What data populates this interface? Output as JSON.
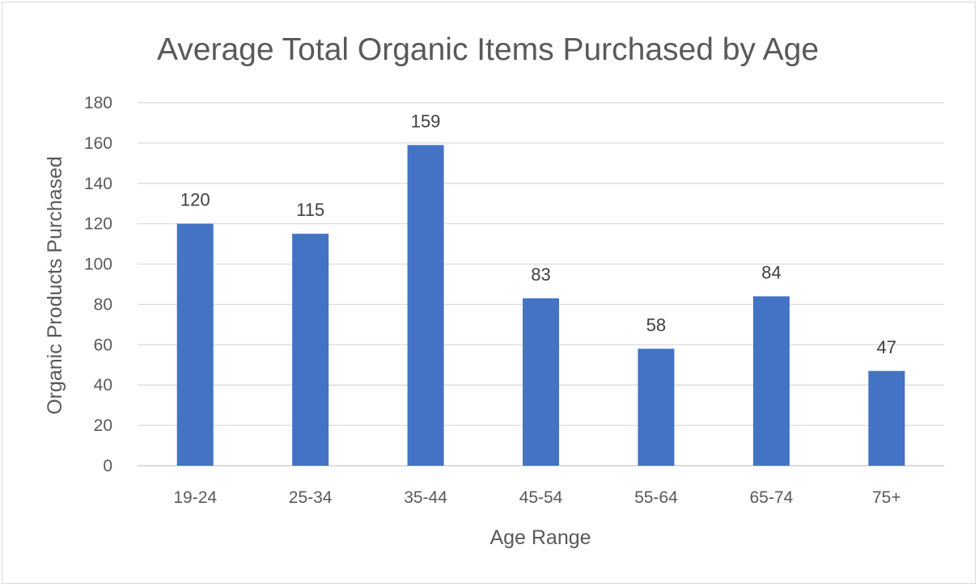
{
  "chart_data": {
    "type": "bar",
    "title": "Average Total Organic Items Purchased by Age",
    "xlabel": "Age Range",
    "ylabel": "Organic Products Purchased",
    "categories": [
      "19-24",
      "25-34",
      "35-44",
      "45-54",
      "55-64",
      "65-74",
      "75+"
    ],
    "values": [
      120,
      115,
      159,
      83,
      58,
      84,
      47
    ],
    "ylim": [
      0,
      180
    ],
    "yticks": [
      0,
      20,
      40,
      60,
      80,
      100,
      120,
      140,
      160,
      180
    ],
    "grid": true,
    "legend": "none",
    "bar_color": "#4472c4"
  }
}
